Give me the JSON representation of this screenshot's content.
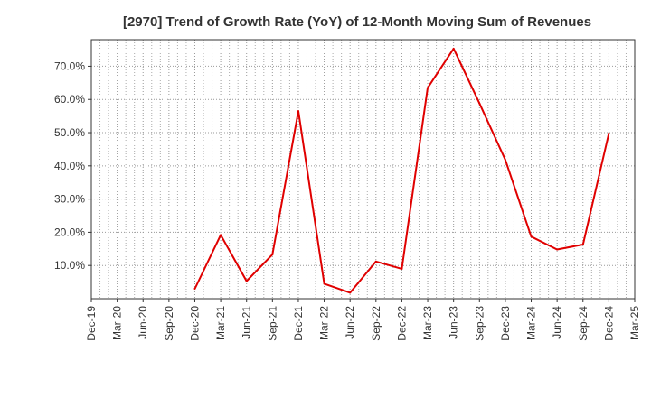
{
  "chart_data": {
    "type": "line",
    "title": "[2970]  Trend of Growth Rate (YoY) of 12-Month Moving Sum of Revenues",
    "xlabel": "",
    "ylabel": "",
    "categories": [
      "Dec-19",
      "Mar-20",
      "Jun-20",
      "Sep-20",
      "Dec-20",
      "Mar-21",
      "Jun-21",
      "Sep-21",
      "Dec-21",
      "Mar-22",
      "Jun-22",
      "Sep-22",
      "Dec-22",
      "Mar-23",
      "Jun-23",
      "Sep-23",
      "Dec-23",
      "Mar-24",
      "Jun-24",
      "Sep-24",
      "Dec-24",
      "Mar-25"
    ],
    "ylim": [
      0,
      78
    ],
    "yticks": [
      10,
      20,
      30,
      40,
      50,
      60,
      70
    ],
    "ytick_labels": [
      "10.0%",
      "20.0%",
      "30.0%",
      "40.0%",
      "50.0%",
      "60.0%",
      "70.0%"
    ],
    "grid": true,
    "series": [
      {
        "color": "#e00000",
        "values": [
          null,
          null,
          null,
          null,
          3.0,
          19.2,
          5.3,
          13.3,
          56.5,
          4.5,
          1.8,
          11.2,
          9.0,
          63.5,
          75.3,
          58.8,
          41.8,
          18.7,
          14.8,
          16.3,
          49.8,
          null
        ]
      }
    ]
  }
}
